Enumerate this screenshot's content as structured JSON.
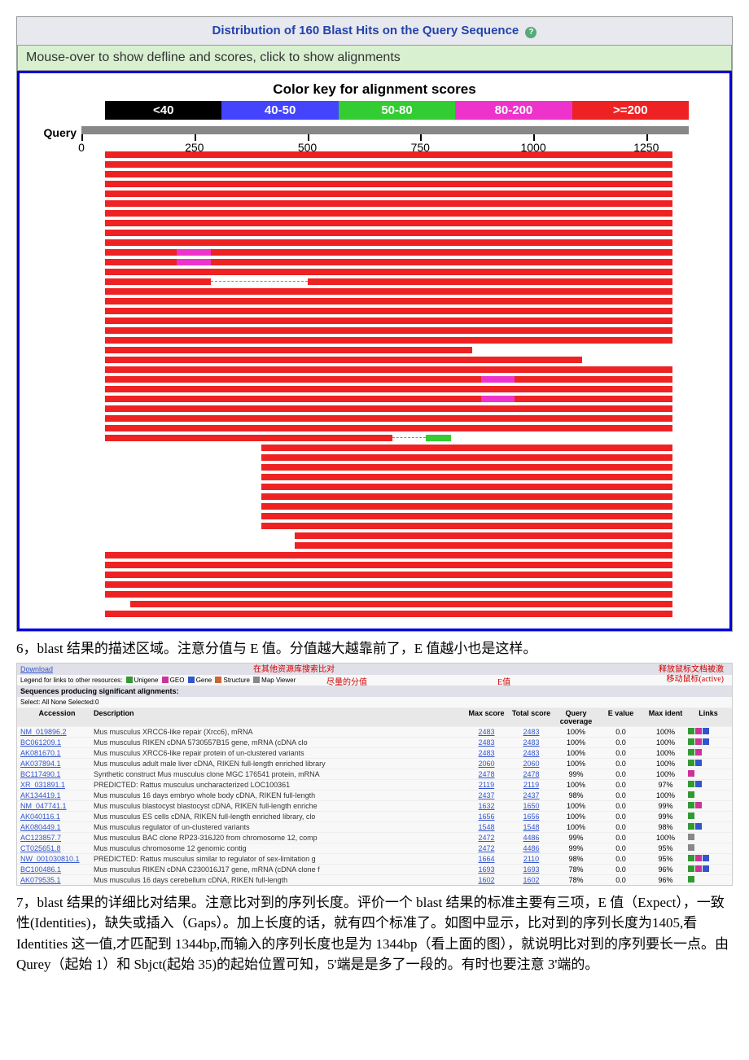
{
  "title": "Distribution of 160 Blast Hits on the Query Sequence",
  "instruction": "Mouse-over to show defline and scores, click to show alignments",
  "colorKeyTitle": "Color key for alignment scores",
  "colorKey": [
    {
      "label": "<40",
      "bg": "#000000"
    },
    {
      "label": "40-50",
      "bg": "#4444ff"
    },
    {
      "label": "50-80",
      "bg": "#33cc33"
    },
    {
      "label": "80-200",
      "bg": "#ee33cc"
    },
    {
      "label": ">=200",
      "bg": "#ee2222"
    }
  ],
  "axis": {
    "label": "Query",
    "min": 0,
    "max": 1344,
    "ticks": [
      0,
      250,
      500,
      750,
      1000,
      1250
    ]
  },
  "hits": [
    [
      {
        "s": 0,
        "e": 1344,
        "c": "#ee2222"
      }
    ],
    [
      {
        "s": 0,
        "e": 1344,
        "c": "#ee2222"
      }
    ],
    [
      {
        "s": 0,
        "e": 1344,
        "c": "#ee2222"
      }
    ],
    [
      {
        "s": 0,
        "e": 1344,
        "c": "#ee2222"
      }
    ],
    [
      {
        "s": 0,
        "e": 1344,
        "c": "#ee2222"
      }
    ],
    [
      {
        "s": 0,
        "e": 1344,
        "c": "#ee2222"
      }
    ],
    [
      {
        "s": 0,
        "e": 1344,
        "c": "#ee2222"
      }
    ],
    [
      {
        "s": 0,
        "e": 1344,
        "c": "#ee2222"
      }
    ],
    [
      {
        "s": 0,
        "e": 1344,
        "c": "#ee2222"
      }
    ],
    [
      {
        "s": 0,
        "e": 1344,
        "c": "#ee2222"
      }
    ],
    [
      {
        "s": 0,
        "e": 170,
        "c": "#ee2222"
      },
      {
        "s": 170,
        "e": 250,
        "c": "#ee33cc"
      },
      {
        "s": 250,
        "e": 1344,
        "c": "#ee2222"
      }
    ],
    [
      {
        "s": 0,
        "e": 170,
        "c": "#ee2222"
      },
      {
        "s": 170,
        "e": 250,
        "c": "#ee33cc"
      },
      {
        "s": 250,
        "e": 1344,
        "c": "#ee2222"
      }
    ],
    [
      {
        "s": 0,
        "e": 1344,
        "c": "#ee2222"
      }
    ],
    [
      {
        "s": 0,
        "e": 250,
        "c": "#ee2222"
      },
      {
        "s": 480,
        "e": 1344,
        "c": "#ee2222"
      }
    ],
    [
      {
        "s": 0,
        "e": 1344,
        "c": "#ee2222"
      }
    ],
    [
      {
        "s": 0,
        "e": 1344,
        "c": "#ee2222"
      }
    ],
    [
      {
        "s": 0,
        "e": 1344,
        "c": "#ee2222"
      }
    ],
    [
      {
        "s": 0,
        "e": 1344,
        "c": "#ee2222"
      }
    ],
    [
      {
        "s": 0,
        "e": 1344,
        "c": "#ee2222"
      }
    ],
    [
      {
        "s": 0,
        "e": 1344,
        "c": "#ee2222"
      }
    ],
    [
      {
        "s": 0,
        "e": 870,
        "c": "#ee2222"
      }
    ],
    [
      {
        "s": 0,
        "e": 1130,
        "c": "#ee2222"
      }
    ],
    [
      {
        "s": 0,
        "e": 1344,
        "c": "#ee2222"
      }
    ],
    [
      {
        "s": 0,
        "e": 890,
        "c": "#ee2222"
      },
      {
        "s": 890,
        "e": 970,
        "c": "#ee33cc"
      },
      {
        "s": 970,
        "e": 1344,
        "c": "#ee2222"
      }
    ],
    [
      {
        "s": 0,
        "e": 1344,
        "c": "#ee2222"
      }
    ],
    [
      {
        "s": 0,
        "e": 890,
        "c": "#ee2222"
      },
      {
        "s": 890,
        "e": 970,
        "c": "#ee33cc"
      },
      {
        "s": 970,
        "e": 1344,
        "c": "#ee2222"
      }
    ],
    [
      {
        "s": 0,
        "e": 1344,
        "c": "#ee2222"
      }
    ],
    [
      {
        "s": 0,
        "e": 1344,
        "c": "#ee2222"
      }
    ],
    [
      {
        "s": 0,
        "e": 1344,
        "c": "#ee2222"
      }
    ],
    [
      {
        "s": 0,
        "e": 680,
        "c": "#ee2222"
      },
      {
        "s": 760,
        "e": 820,
        "c": "#33cc33"
      }
    ],
    [
      {
        "s": 370,
        "e": 1344,
        "c": "#ee2222"
      }
    ],
    [
      {
        "s": 370,
        "e": 1344,
        "c": "#ee2222"
      }
    ],
    [
      {
        "s": 370,
        "e": 1344,
        "c": "#ee2222"
      }
    ],
    [
      {
        "s": 370,
        "e": 1344,
        "c": "#ee2222"
      }
    ],
    [
      {
        "s": 370,
        "e": 1344,
        "c": "#ee2222"
      }
    ],
    [
      {
        "s": 370,
        "e": 1344,
        "c": "#ee2222"
      }
    ],
    [
      {
        "s": 370,
        "e": 1344,
        "c": "#ee2222"
      }
    ],
    [
      {
        "s": 370,
        "e": 1344,
        "c": "#ee2222"
      }
    ],
    [
      {
        "s": 370,
        "e": 1344,
        "c": "#ee2222"
      }
    ],
    [
      {
        "s": 450,
        "e": 1344,
        "c": "#ee2222"
      }
    ],
    [
      {
        "s": 450,
        "e": 1344,
        "c": "#ee2222"
      }
    ],
    [
      {
        "s": 0,
        "e": 1344,
        "c": "#ee2222"
      }
    ],
    [
      {
        "s": 0,
        "e": 1344,
        "c": "#ee2222"
      }
    ],
    [
      {
        "s": 0,
        "e": 1344,
        "c": "#ee2222"
      }
    ],
    [
      {
        "s": 0,
        "e": 1344,
        "c": "#ee2222"
      }
    ],
    [
      {
        "s": 0,
        "e": 1344,
        "c": "#ee2222"
      }
    ],
    [
      {
        "s": 60,
        "e": 1344,
        "c": "#ee2222"
      }
    ],
    [
      {
        "s": 0,
        "e": 1344,
        "c": "#ee2222"
      }
    ]
  ],
  "caption6": "6，blast 结果的描述区域。注意分值与 E 值。分值越大越靠前了，E 值越小也是这样。",
  "caption7": "7，blast 结果的详细比对结果。注意比对到的序列长度。评价一个 blast 结果的标准主要有三项，E 值（Expect），一致性(Identities)，缺失或插入（Gaps）。加上长度的话，就有四个标准了。如图中显示，比对到的序列长度为1405,看 Identities 这一值,才匹配到 1344bp,而输入的序列长度也是为 1344bp（看上面的图），就说明比对到的序列要长一点。由 Qurey（起始 1）和 Sbjct(起始 35)的起始位置可知，5'端是是多了一段的。有时也要注意 3'端的。",
  "annotations": {
    "a1": "在其他资源库搜索比对",
    "a2": "尽量的分值",
    "a3": "E值",
    "a4": "释放鼠标文档被激",
    "a5": "移动鼠标(active)"
  },
  "tableHeader": "Sequences producing significant alignments:",
  "tableSub": "Select: All None Selected:0",
  "legendItems": [
    {
      "t": "Unigene",
      "c": "#339933"
    },
    {
      "t": "GEO",
      "c": "#cc3399"
    },
    {
      "t": "Gene",
      "c": "#3355cc"
    },
    {
      "t": "Structure",
      "c": "#cc6633"
    },
    {
      "t": "Map Viewer",
      "c": "#888888"
    }
  ],
  "cols": [
    "Accession",
    "Description",
    "Max score",
    "Total score",
    "Query coverage",
    "E value",
    "Max ident",
    "Links"
  ],
  "rows": [
    {
      "acc": "NM_019896.2",
      "desc": "Mus musculus XRCC6-like repair (Xrcc6), mRNA",
      "ms": "2483",
      "ts": "2483",
      "qc": "100%",
      "ev": "0.0",
      "mi": "100%",
      "b": [
        "#339933",
        "#cc3399",
        "#3355cc"
      ]
    },
    {
      "acc": "BC061209.1",
      "desc": "Mus musculus RIKEN cDNA 5730557B15 gene, mRNA (cDNA clo",
      "ms": "2483",
      "ts": "2483",
      "qc": "100%",
      "ev": "0.0",
      "mi": "100%",
      "b": [
        "#339933",
        "#cc3399",
        "#3355cc"
      ]
    },
    {
      "acc": "AK081670.1",
      "desc": "Mus musculus XRCC6-like repair protein of un-clustered variants",
      "ms": "2483",
      "ts": "2483",
      "qc": "100%",
      "ev": "0.0",
      "mi": "100%",
      "b": [
        "#339933",
        "#cc3399"
      ]
    },
    {
      "acc": "AK037894.1",
      "desc": "Mus musculus adult male liver cDNA, RIKEN full-length enriched library",
      "ms": "2060",
      "ts": "2060",
      "qc": "100%",
      "ev": "0.0",
      "mi": "100%",
      "b": [
        "#339933",
        "#3355cc"
      ]
    },
    {
      "acc": "BC117490.1",
      "desc": "Synthetic construct Mus musculus clone MGC 176541 protein, mRNA",
      "ms": "2478",
      "ts": "2478",
      "qc": "99%",
      "ev": "0.0",
      "mi": "100%",
      "b": [
        "#cc3399"
      ]
    },
    {
      "acc": "XR_031891.1",
      "desc": "PREDICTED: Rattus musculus uncharacterized LOC100361",
      "ms": "2119",
      "ts": "2119",
      "qc": "100%",
      "ev": "0.0",
      "mi": "97%",
      "b": [
        "#339933",
        "#3355cc"
      ]
    },
    {
      "acc": "AK134419.1",
      "desc": "Mus musculus 16 days embryo whole body cDNA, RIKEN full-length",
      "ms": "2437",
      "ts": "2437",
      "qc": "98%",
      "ev": "0.0",
      "mi": "100%",
      "b": [
        "#339933"
      ]
    },
    {
      "acc": "NM_047741.1",
      "desc": "Mus musculus blastocyst blastocyst cDNA, RIKEN full-length enriche",
      "ms": "1632",
      "ts": "1650",
      "qc": "100%",
      "ev": "0.0",
      "mi": "99%",
      "b": [
        "#339933",
        "#cc3399"
      ]
    },
    {
      "acc": "AK040116.1",
      "desc": "Mus musculus ES cells cDNA, RIKEN full-length enriched library, clo",
      "ms": "1656",
      "ts": "1656",
      "qc": "100%",
      "ev": "0.0",
      "mi": "99%",
      "b": [
        "#339933"
      ]
    },
    {
      "acc": "AK080449.1",
      "desc": "Mus musculus regulator of un-clustered variants",
      "ms": "1548",
      "ts": "1548",
      "qc": "100%",
      "ev": "0.0",
      "mi": "98%",
      "b": [
        "#339933",
        "#3355cc"
      ]
    },
    {
      "acc": "AC123857.7",
      "desc": "Mus musculus BAC clone RP23-316J20 from chromosome 12, comp",
      "ms": "2472",
      "ts": "4486",
      "qc": "99%",
      "ev": "0.0",
      "mi": "100%",
      "b": [
        "#888888"
      ]
    },
    {
      "acc": "CT025651.8",
      "desc": "Mus musculus chromosome 12 genomic contig",
      "ms": "2472",
      "ts": "4486",
      "qc": "99%",
      "ev": "0.0",
      "mi": "95%",
      "b": [
        "#888888"
      ]
    },
    {
      "acc": "NW_001030810.1",
      "desc": "PREDICTED: Rattus musculus similar to regulator of sex-limitation g",
      "ms": "1664",
      "ts": "2110",
      "qc": "98%",
      "ev": "0.0",
      "mi": "95%",
      "b": [
        "#339933",
        "#cc3399",
        "#3355cc"
      ]
    },
    {
      "acc": "BC100486.1",
      "desc": "Mus musculus RIKEN cDNA C230016J17 gene, mRNA (cDNA clone f",
      "ms": "1693",
      "ts": "1693",
      "qc": "78%",
      "ev": "0.0",
      "mi": "96%",
      "b": [
        "#339933",
        "#cc3399",
        "#3355cc"
      ]
    },
    {
      "acc": "AK079535.1",
      "desc": "Mus musculus 16 days cerebellum cDNA, RIKEN full-length",
      "ms": "1602",
      "ts": "1602",
      "qc": "78%",
      "ev": "0.0",
      "mi": "96%",
      "b": [
        "#339933"
      ]
    }
  ],
  "colors": {
    "box_u": "#339933",
    "box_g": "#cc3399",
    "box_n": "#3355cc",
    "box_s": "#cc6633",
    "box_m": "#888888"
  }
}
